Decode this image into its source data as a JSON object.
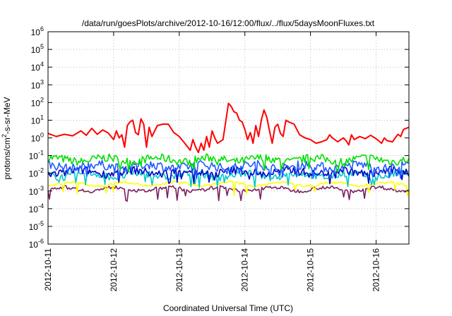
{
  "chart_data": {
    "type": "line",
    "title": "/data/run/goesPlots/archive/2012-10-16/12:00/flux/../flux/5daysMoonFluxes.txt",
    "xlabel": "Coordinated Universal Time (UTC)",
    "ylabel": {
      "prefix": "protons/cm",
      "sup": "2",
      "suffix": "-s-sr-MeV"
    },
    "x_range": [
      "2012-10-11",
      "2012-10-16T12:00"
    ],
    "x_ticks": [
      "2012-10-11",
      "2012-10-12",
      "2012-10-13",
      "2012-10-14",
      "2012-10-15",
      "2012-10-16"
    ],
    "y_scale": "log",
    "y_range": [
      1e-06,
      1000000.0
    ],
    "y_ticks": [
      {
        "base": "10",
        "exp": "-6"
      },
      {
        "base": "10",
        "exp": "-5"
      },
      {
        "base": "10",
        "exp": "-4"
      },
      {
        "base": "10",
        "exp": "-3"
      },
      {
        "base": "10",
        "exp": "-2"
      },
      {
        "base": "10",
        "exp": "-1"
      },
      {
        "base": "10",
        "exp": "0"
      },
      {
        "base": "10",
        "exp": "1"
      },
      {
        "base": "10",
        "exp": "2"
      },
      {
        "base": "10",
        "exp": "3"
      },
      {
        "base": "10",
        "exp": "4"
      },
      {
        "base": "10",
        "exp": "5"
      },
      {
        "base": "10",
        "exp": "6"
      }
    ],
    "grid": true,
    "series": [
      {
        "color": "#ff0000",
        "points": [
          [
            "2012-10-11T00:00",
            1.8
          ],
          [
            "2012-10-11T03:00",
            1.2
          ],
          [
            "2012-10-11T06:00",
            1.6
          ],
          [
            "2012-10-11T09:00",
            1.3
          ],
          [
            "2012-10-11T12:00",
            2.5
          ],
          [
            "2012-10-11T14:00",
            1.4
          ],
          [
            "2012-10-11T16:00",
            3.5
          ],
          [
            "2012-10-11T18:00",
            1.6
          ],
          [
            "2012-10-11T20:00",
            2.8
          ],
          [
            "2012-10-11T22:00",
            1.9
          ],
          [
            "2012-10-12T00:00",
            0.8
          ],
          [
            "2012-10-12T01:00",
            2.5
          ],
          [
            "2012-10-12T02:00",
            1.0
          ],
          [
            "2012-10-12T03:00",
            1.5
          ],
          [
            "2012-10-12T04:00",
            0.3
          ],
          [
            "2012-10-12T05:00",
            5
          ],
          [
            "2012-10-12T06:00",
            8
          ],
          [
            "2012-10-12T07:00",
            10
          ],
          [
            "2012-10-12T08:00",
            2
          ],
          [
            "2012-10-12T09:00",
            1.5
          ],
          [
            "2012-10-12T10:00",
            12
          ],
          [
            "2012-10-12T11:00",
            6
          ],
          [
            "2012-10-12T12:00",
            0.3
          ],
          [
            "2012-10-12T13:00",
            4
          ],
          [
            "2012-10-12T14:00",
            1.2
          ],
          [
            "2012-10-12T16:00",
            5
          ],
          [
            "2012-10-12T18:00",
            6
          ],
          [
            "2012-10-12T20:00",
            6
          ],
          [
            "2012-10-12T22:00",
            2
          ],
          [
            "2012-10-13T00:00",
            1.2
          ],
          [
            "2012-10-13T02:00",
            0.5
          ],
          [
            "2012-10-13T04:00",
            0.2
          ],
          [
            "2012-10-13T05:00",
            0.8
          ],
          [
            "2012-10-13T06:00",
            0.3
          ],
          [
            "2012-10-13T07:00",
            0.15
          ],
          [
            "2012-10-13T08:00",
            0.5
          ],
          [
            "2012-10-13T09:00",
            0.2
          ],
          [
            "2012-10-13T10:00",
            1.2
          ],
          [
            "2012-10-13T11:00",
            0.3
          ],
          [
            "2012-10-13T12:00",
            2.5
          ],
          [
            "2012-10-13T13:00",
            1.0
          ],
          [
            "2012-10-13T14:00",
            0.5
          ],
          [
            "2012-10-13T16:00",
            0.8
          ],
          [
            "2012-10-13T18:00",
            90
          ],
          [
            "2012-10-13T19:00",
            60
          ],
          [
            "2012-10-13T20:00",
            30
          ],
          [
            "2012-10-13T21:00",
            25
          ],
          [
            "2012-10-13T22:00",
            10
          ],
          [
            "2012-10-13T23:00",
            8
          ],
          [
            "2012-10-14T00:00",
            3
          ],
          [
            "2012-10-14T01:00",
            0.8
          ],
          [
            "2012-10-14T02:00",
            2
          ],
          [
            "2012-10-14T03:00",
            0.5
          ],
          [
            "2012-10-14T04:00",
            5
          ],
          [
            "2012-10-14T05:00",
            1.2
          ],
          [
            "2012-10-14T06:00",
            10
          ],
          [
            "2012-10-14T07:00",
            38
          ],
          [
            "2012-10-14T08:00",
            15
          ],
          [
            "2012-10-14T09:00",
            2.5
          ],
          [
            "2012-10-14T10:00",
            0.5
          ],
          [
            "2012-10-14T11:00",
            4
          ],
          [
            "2012-10-14T12:00",
            6
          ],
          [
            "2012-10-14T13:00",
            1.8
          ],
          [
            "2012-10-14T14:00",
            1.2
          ],
          [
            "2012-10-14T15:00",
            10
          ],
          [
            "2012-10-14T16:00",
            8
          ],
          [
            "2012-10-14T18:00",
            6
          ],
          [
            "2012-10-14T20:00",
            1.5
          ],
          [
            "2012-10-14T22:00",
            1.0
          ],
          [
            "2012-10-15T00:00",
            0.8
          ],
          [
            "2012-10-15T02:00",
            0.5
          ],
          [
            "2012-10-15T04:00",
            0.6
          ],
          [
            "2012-10-15T06:00",
            0.8
          ],
          [
            "2012-10-15T07:00",
            1.5
          ],
          [
            "2012-10-15T08:00",
            1.0
          ],
          [
            "2012-10-15T10:00",
            0.6
          ],
          [
            "2012-10-15T12:00",
            1.0
          ],
          [
            "2012-10-15T13:00",
            0.7
          ],
          [
            "2012-10-15T14:00",
            0.4
          ],
          [
            "2012-10-15T15:00",
            1.5
          ],
          [
            "2012-10-15T16:00",
            0.8
          ],
          [
            "2012-10-15T18:00",
            1.2
          ],
          [
            "2012-10-15T20:00",
            0.9
          ],
          [
            "2012-10-15T22:00",
            1.4
          ],
          [
            "2012-10-16T00:00",
            0.9
          ],
          [
            "2012-10-16T02:00",
            0.5
          ],
          [
            "2012-10-16T03:00",
            1.0
          ],
          [
            "2012-10-16T04:00",
            0.7
          ],
          [
            "2012-10-16T06:00",
            0.6
          ],
          [
            "2012-10-16T07:00",
            1.0
          ],
          [
            "2012-10-16T08:00",
            1.6
          ],
          [
            "2012-10-16T09:00",
            1.2
          ],
          [
            "2012-10-16T10:00",
            3
          ],
          [
            "2012-10-16T11:00",
            3.5
          ],
          [
            "2012-10-16T12:00",
            4
          ]
        ]
      },
      {
        "color": "#00e000",
        "base": 0.06,
        "spread": 1.7
      },
      {
        "color": "#1e5bff",
        "base": 0.025,
        "spread": 1.8
      },
      {
        "color": "#00c8c8",
        "base": 0.008,
        "spread": 1.6
      },
      {
        "color": "#0000c8",
        "base": 0.012,
        "spread": 1.7
      },
      {
        "color": "#ffff00",
        "base": 0.0025,
        "spread": 1.15
      },
      {
        "color": "#7b1f5e",
        "base": 0.0013,
        "spread": 1.25
      }
    ]
  }
}
